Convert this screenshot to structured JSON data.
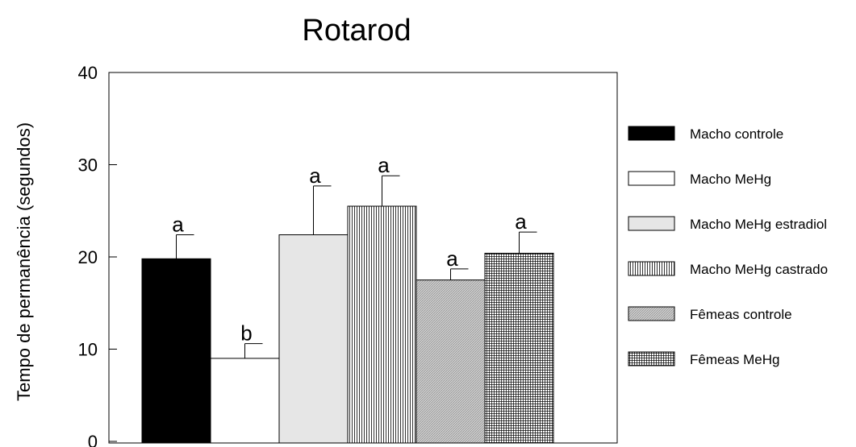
{
  "chart_data": {
    "type": "bar",
    "title": "Rotarod",
    "xlabel": "",
    "ylabel": "Tempo de permanência (segundos)",
    "ylim": [
      0,
      40
    ],
    "yticks": [
      0,
      10,
      20,
      30,
      40
    ],
    "grid": false,
    "legend_position": "right",
    "series": [
      {
        "name": "Macho controle",
        "value": 19.8,
        "error": 2.6,
        "label": "a",
        "fill": "solid-black"
      },
      {
        "name": "Macho MeHg",
        "value": 9.0,
        "error": 1.6,
        "label": "b",
        "fill": "white"
      },
      {
        "name": "Macho MeHg estradiol",
        "value": 22.4,
        "error": 5.3,
        "label": "a",
        "fill": "light-gray"
      },
      {
        "name": "Macho MeHg castrado",
        "value": 25.5,
        "error": 3.3,
        "label": "a",
        "fill": "vertical-lines"
      },
      {
        "name": "Fêmeas controle",
        "value": 17.5,
        "error": 1.2,
        "label": "a",
        "fill": "diagonal-hatch"
      },
      {
        "name": "Fêmeas MeHg",
        "value": 20.4,
        "error": 2.3,
        "label": "a",
        "fill": "crosshatch"
      }
    ]
  }
}
